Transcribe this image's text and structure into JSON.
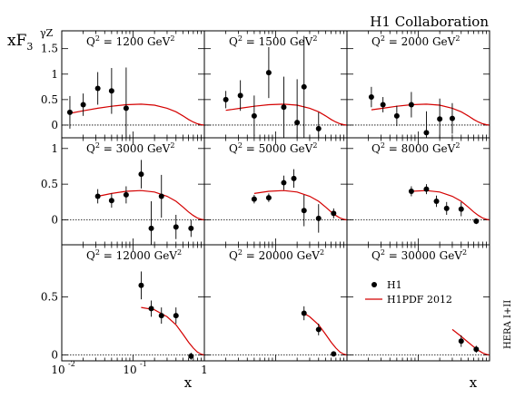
{
  "collaboration": "H1 Collaboration",
  "ylabel": "xF",
  "ylabel_sub": "3",
  "ylabel_sup": "γZ",
  "xlabel": "x",
  "side_text": "HERA I+II",
  "legend": {
    "data_label": "H1",
    "curve_label": "H1PDF 2012"
  },
  "colors": {
    "curve": "#d40000",
    "points": "#000000"
  },
  "chart_data": {
    "type": "scatter",
    "xscale": "log",
    "xlim": [
      0.01,
      1
    ],
    "grid": false,
    "legend_placement": "bottom-right panel",
    "x_tick_labels": [
      "10",
      "-2",
      "10",
      "-1",
      "1"
    ],
    "panel_rows": [
      {
        "ylim": [
          -0.25,
          1.85
        ],
        "yticks": [
          0,
          0.5,
          1,
          1.5
        ],
        "ytick_labels": [
          "0",
          "0.5",
          "1",
          "1.5"
        ]
      },
      {
        "ylim": [
          -0.35,
          1.15
        ],
        "yticks": [
          0,
          0.5,
          1
        ],
        "ytick_labels": [
          "0",
          "0.5",
          "1"
        ]
      },
      {
        "ylim": [
          -0.05,
          0.95
        ],
        "yticks": [
          0,
          0.5
        ],
        "ytick_labels": [
          "0",
          "0.5"
        ]
      }
    ],
    "panels": [
      {
        "q2": "1200",
        "label_pre": "Q",
        "label_sup": "2",
        "label_mid": " = 1200 GeV",
        "label_unit_sup": "2",
        "points": [
          {
            "x": 0.013,
            "y": 0.25,
            "err": 0.32
          },
          {
            "x": 0.02,
            "y": 0.4,
            "err": 0.22
          },
          {
            "x": 0.032,
            "y": 0.72,
            "err": 0.32
          },
          {
            "x": 0.05,
            "y": 0.67,
            "err": 0.45
          },
          {
            "x": 0.08,
            "y": 0.33,
            "err": 0.8
          }
        ],
        "curve": {
          "x": [
            0.013,
            0.02,
            0.032,
            0.05,
            0.08,
            0.13,
            0.2,
            0.3,
            0.4,
            0.5,
            0.6,
            0.7,
            0.8,
            0.9,
            0.99
          ],
          "y": [
            0.23,
            0.28,
            0.33,
            0.37,
            0.4,
            0.41,
            0.39,
            0.33,
            0.26,
            0.18,
            0.11,
            0.06,
            0.025,
            0.008,
            0.0
          ]
        }
      },
      {
        "q2": "1500",
        "label_pre": "Q",
        "label_sup": "2",
        "label_mid": " = 1500 GeV",
        "label_unit_sup": "2",
        "points": [
          {
            "x": 0.02,
            "y": 0.5,
            "err": 0.17
          },
          {
            "x": 0.032,
            "y": 0.58,
            "err": 0.3
          },
          {
            "x": 0.05,
            "y": 0.18,
            "err": 0.4
          },
          {
            "x": 0.08,
            "y": 1.03,
            "err": 0.5
          },
          {
            "x": 0.13,
            "y": 0.35,
            "err": 0.6
          },
          {
            "x": 0.2,
            "y": 0.05,
            "err": 0.85
          },
          {
            "x": 0.25,
            "y": 0.75,
            "err": 1.0
          },
          {
            "x": 0.4,
            "y": -0.07,
            "err": 0.32
          }
        ],
        "curve": {
          "x": [
            0.02,
            0.032,
            0.05,
            0.08,
            0.13,
            0.2,
            0.3,
            0.4,
            0.5,
            0.6,
            0.7,
            0.8,
            0.9,
            0.99
          ],
          "y": [
            0.29,
            0.33,
            0.37,
            0.4,
            0.41,
            0.39,
            0.33,
            0.26,
            0.18,
            0.11,
            0.06,
            0.025,
            0.008,
            0.0
          ]
        }
      },
      {
        "q2": "2000",
        "label_pre": "Q",
        "label_sup": "2",
        "label_mid": " = 2000 GeV",
        "label_unit_sup": "2",
        "points": [
          {
            "x": 0.022,
            "y": 0.55,
            "err": 0.2
          },
          {
            "x": 0.032,
            "y": 0.4,
            "err": 0.15
          },
          {
            "x": 0.05,
            "y": 0.18,
            "err": 0.2
          },
          {
            "x": 0.08,
            "y": 0.4,
            "err": 0.25
          },
          {
            "x": 0.13,
            "y": -0.15,
            "err": 0.42
          },
          {
            "x": 0.2,
            "y": 0.12,
            "err": 0.4
          },
          {
            "x": 0.3,
            "y": 0.13,
            "err": 0.3
          }
        ],
        "curve": {
          "x": [
            0.022,
            0.032,
            0.05,
            0.08,
            0.13,
            0.2,
            0.3,
            0.4,
            0.5,
            0.6,
            0.7,
            0.8,
            0.9,
            0.99
          ],
          "y": [
            0.3,
            0.33,
            0.37,
            0.4,
            0.41,
            0.39,
            0.33,
            0.26,
            0.18,
            0.11,
            0.06,
            0.025,
            0.008,
            0.0
          ]
        }
      },
      {
        "q2": "3000",
        "label_pre": "Q",
        "label_sup": "2",
        "label_mid": " = 3000 GeV",
        "label_unit_sup": "2",
        "points": [
          {
            "x": 0.032,
            "y": 0.33,
            "err": 0.1
          },
          {
            "x": 0.05,
            "y": 0.27,
            "err": 0.1
          },
          {
            "x": 0.08,
            "y": 0.35,
            "err": 0.12
          },
          {
            "x": 0.13,
            "y": 0.64,
            "err": 0.2
          },
          {
            "x": 0.18,
            "y": -0.12,
            "err": 0.38
          },
          {
            "x": 0.25,
            "y": 0.33,
            "err": 0.3
          },
          {
            "x": 0.4,
            "y": -0.1,
            "err": 0.17
          },
          {
            "x": 0.65,
            "y": -0.12,
            "err": 0.12
          }
        ],
        "curve": {
          "x": [
            0.032,
            0.05,
            0.08,
            0.13,
            0.2,
            0.3,
            0.4,
            0.5,
            0.6,
            0.7,
            0.8,
            0.9,
            0.99
          ],
          "y": [
            0.33,
            0.37,
            0.4,
            0.41,
            0.39,
            0.33,
            0.26,
            0.18,
            0.11,
            0.06,
            0.025,
            0.008,
            0.0
          ]
        }
      },
      {
        "q2": "5000",
        "label_pre": "Q",
        "label_sup": "2",
        "label_mid": " = 5000 GeV",
        "label_unit_sup": "2",
        "points": [
          {
            "x": 0.05,
            "y": 0.29,
            "err": 0.06
          },
          {
            "x": 0.08,
            "y": 0.31,
            "err": 0.06
          },
          {
            "x": 0.13,
            "y": 0.52,
            "err": 0.1
          },
          {
            "x": 0.18,
            "y": 0.58,
            "err": 0.13
          },
          {
            "x": 0.25,
            "y": 0.13,
            "err": 0.22
          },
          {
            "x": 0.4,
            "y": 0.02,
            "err": 0.2
          },
          {
            "x": 0.65,
            "y": 0.09,
            "err": 0.07
          }
        ],
        "curve": {
          "x": [
            0.05,
            0.08,
            0.13,
            0.2,
            0.3,
            0.4,
            0.5,
            0.6,
            0.7,
            0.8,
            0.9,
            0.99
          ],
          "y": [
            0.37,
            0.4,
            0.41,
            0.39,
            0.33,
            0.26,
            0.18,
            0.11,
            0.06,
            0.025,
            0.008,
            0.0
          ]
        }
      },
      {
        "q2": "8000",
        "label_pre": "Q",
        "label_sup": "2",
        "label_mid": " = 8000 GeV",
        "label_unit_sup": "2",
        "points": [
          {
            "x": 0.08,
            "y": 0.4,
            "err": 0.07
          },
          {
            "x": 0.13,
            "y": 0.43,
            "err": 0.07
          },
          {
            "x": 0.18,
            "y": 0.26,
            "err": 0.08
          },
          {
            "x": 0.25,
            "y": 0.16,
            "err": 0.09
          },
          {
            "x": 0.4,
            "y": 0.15,
            "err": 0.1
          },
          {
            "x": 0.65,
            "y": -0.02,
            "err": 0.04
          }
        ],
        "curve": {
          "x": [
            0.08,
            0.13,
            0.2,
            0.3,
            0.4,
            0.5,
            0.6,
            0.7,
            0.8,
            0.9,
            0.99
          ],
          "y": [
            0.4,
            0.41,
            0.39,
            0.33,
            0.26,
            0.18,
            0.11,
            0.06,
            0.025,
            0.008,
            0.0
          ]
        }
      },
      {
        "q2": "12000",
        "label_pre": "Q",
        "label_sup": "2",
        "label_mid": " = 12000 GeV",
        "label_unit_sup": "2",
        "points": [
          {
            "x": 0.13,
            "y": 0.6,
            "err": 0.12
          },
          {
            "x": 0.18,
            "y": 0.4,
            "err": 0.07
          },
          {
            "x": 0.25,
            "y": 0.34,
            "err": 0.07
          },
          {
            "x": 0.4,
            "y": 0.34,
            "err": 0.07
          },
          {
            "x": 0.65,
            "y": -0.01,
            "err": 0.03
          }
        ],
        "curve": {
          "x": [
            0.13,
            0.2,
            0.3,
            0.4,
            0.5,
            0.6,
            0.7,
            0.8,
            0.9,
            0.99
          ],
          "y": [
            0.41,
            0.39,
            0.33,
            0.26,
            0.18,
            0.11,
            0.06,
            0.025,
            0.008,
            0.0
          ]
        }
      },
      {
        "q2": "20000",
        "label_pre": "Q",
        "label_sup": "2",
        "label_mid": " = 20000 GeV",
        "label_unit_sup": "2",
        "points": [
          {
            "x": 0.25,
            "y": 0.36,
            "err": 0.06
          },
          {
            "x": 0.4,
            "y": 0.22,
            "err": 0.05
          },
          {
            "x": 0.65,
            "y": 0.01,
            "err": 0.02
          }
        ],
        "curve": {
          "x": [
            0.25,
            0.3,
            0.4,
            0.5,
            0.6,
            0.7,
            0.8,
            0.9,
            0.99
          ],
          "y": [
            0.36,
            0.33,
            0.26,
            0.18,
            0.11,
            0.06,
            0.025,
            0.008,
            0.0
          ]
        }
      },
      {
        "q2": "30000",
        "label_pre": "Q",
        "label_sup": "2",
        "label_mid": " = 30000 GeV",
        "label_unit_sup": "2",
        "points": [
          {
            "x": 0.4,
            "y": 0.12,
            "err": 0.05
          },
          {
            "x": 0.65,
            "y": 0.05,
            "err": 0.03
          }
        ],
        "curve": {
          "x": [
            0.3,
            0.4,
            0.5,
            0.6,
            0.7,
            0.8,
            0.9,
            0.99
          ],
          "y": [
            0.22,
            0.16,
            0.11,
            0.07,
            0.04,
            0.018,
            0.006,
            0.0
          ]
        }
      }
    ]
  }
}
